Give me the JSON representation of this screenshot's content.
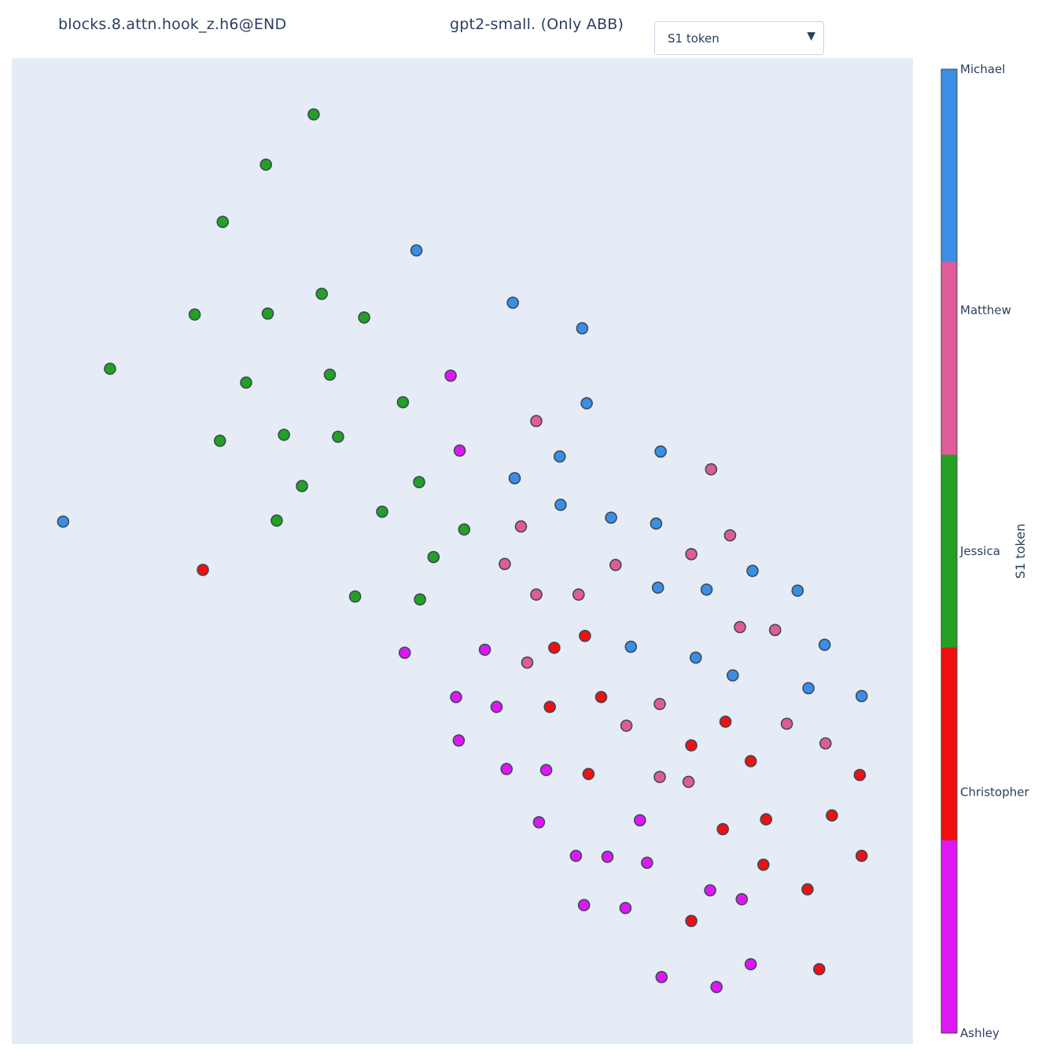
{
  "header": {
    "left_title": "blocks.8.attn.hook_z.h6@END",
    "center_title": "gpt2-small. (Only ABB)"
  },
  "dropdown": {
    "selected": "S1 token",
    "icon": "caret-down-icon"
  },
  "colorbar": {
    "title": "S1 token",
    "categories": [
      {
        "name": "Michael",
        "color": "#3a8ee6"
      },
      {
        "name": "Matthew",
        "color": "#e05c98"
      },
      {
        "name": "Jessica",
        "color": "#22a122"
      },
      {
        "name": "Christopher",
        "color": "#f01010"
      },
      {
        "name": "Ashley",
        "color": "#dd18f5"
      }
    ]
  },
  "chart_data": {
    "type": "scatter",
    "title": "",
    "xlabel": "",
    "ylabel": "",
    "grid": false,
    "xlim": [
      0,
      100
    ],
    "ylim": [
      0,
      100
    ],
    "color_key": "S1 token",
    "points": [
      {
        "x": 33.5,
        "y": 94.3,
        "c": "Jessica"
      },
      {
        "x": 28.2,
        "y": 89.2,
        "c": "Jessica"
      },
      {
        "x": 23.4,
        "y": 83.4,
        "c": "Jessica"
      },
      {
        "x": 34.4,
        "y": 76.1,
        "c": "Jessica"
      },
      {
        "x": 20.3,
        "y": 74.0,
        "c": "Jessica"
      },
      {
        "x": 28.4,
        "y": 74.1,
        "c": "Jessica"
      },
      {
        "x": 39.1,
        "y": 73.7,
        "c": "Jessica"
      },
      {
        "x": 10.9,
        "y": 68.5,
        "c": "Jessica"
      },
      {
        "x": 26.0,
        "y": 67.1,
        "c": "Jessica"
      },
      {
        "x": 35.3,
        "y": 67.9,
        "c": "Jessica"
      },
      {
        "x": 43.4,
        "y": 65.1,
        "c": "Jessica"
      },
      {
        "x": 23.1,
        "y": 61.2,
        "c": "Jessica"
      },
      {
        "x": 30.2,
        "y": 61.8,
        "c": "Jessica"
      },
      {
        "x": 36.2,
        "y": 61.6,
        "c": "Jessica"
      },
      {
        "x": 32.2,
        "y": 56.6,
        "c": "Jessica"
      },
      {
        "x": 45.2,
        "y": 57.0,
        "c": "Jessica"
      },
      {
        "x": 41.1,
        "y": 54.0,
        "c": "Jessica"
      },
      {
        "x": 29.4,
        "y": 53.1,
        "c": "Jessica"
      },
      {
        "x": 50.2,
        "y": 52.2,
        "c": "Jessica"
      },
      {
        "x": 46.8,
        "y": 49.4,
        "c": "Jessica"
      },
      {
        "x": 38.1,
        "y": 45.4,
        "c": "Jessica"
      },
      {
        "x": 45.3,
        "y": 45.1,
        "c": "Jessica"
      },
      {
        "x": 5.7,
        "y": 53.0,
        "c": "Michael"
      },
      {
        "x": 44.9,
        "y": 80.5,
        "c": "Michael"
      },
      {
        "x": 55.6,
        "y": 75.2,
        "c": "Michael"
      },
      {
        "x": 63.3,
        "y": 72.6,
        "c": "Michael"
      },
      {
        "x": 63.8,
        "y": 65.0,
        "c": "Michael"
      },
      {
        "x": 72.0,
        "y": 60.1,
        "c": "Michael"
      },
      {
        "x": 60.8,
        "y": 59.6,
        "c": "Michael"
      },
      {
        "x": 55.8,
        "y": 57.4,
        "c": "Michael"
      },
      {
        "x": 60.9,
        "y": 54.7,
        "c": "Michael"
      },
      {
        "x": 66.5,
        "y": 53.4,
        "c": "Michael"
      },
      {
        "x": 71.5,
        "y": 52.8,
        "c": "Michael"
      },
      {
        "x": 82.2,
        "y": 48.0,
        "c": "Michael"
      },
      {
        "x": 71.7,
        "y": 46.3,
        "c": "Michael"
      },
      {
        "x": 77.1,
        "y": 46.1,
        "c": "Michael"
      },
      {
        "x": 87.2,
        "y": 46.0,
        "c": "Michael"
      },
      {
        "x": 90.2,
        "y": 40.5,
        "c": "Michael"
      },
      {
        "x": 68.7,
        "y": 40.3,
        "c": "Michael"
      },
      {
        "x": 75.9,
        "y": 39.2,
        "c": "Michael"
      },
      {
        "x": 80.0,
        "y": 37.4,
        "c": "Michael"
      },
      {
        "x": 88.4,
        "y": 36.1,
        "c": "Michael"
      },
      {
        "x": 94.3,
        "y": 35.3,
        "c": "Michael"
      },
      {
        "x": 58.2,
        "y": 63.2,
        "c": "Matthew"
      },
      {
        "x": 77.6,
        "y": 58.3,
        "c": "Matthew"
      },
      {
        "x": 56.5,
        "y": 52.5,
        "c": "Matthew"
      },
      {
        "x": 79.7,
        "y": 51.6,
        "c": "Matthew"
      },
      {
        "x": 75.4,
        "y": 49.7,
        "c": "Matthew"
      },
      {
        "x": 54.7,
        "y": 48.7,
        "c": "Matthew"
      },
      {
        "x": 67.0,
        "y": 48.6,
        "c": "Matthew"
      },
      {
        "x": 58.2,
        "y": 45.6,
        "c": "Matthew"
      },
      {
        "x": 62.9,
        "y": 45.6,
        "c": "Matthew"
      },
      {
        "x": 80.8,
        "y": 42.3,
        "c": "Matthew"
      },
      {
        "x": 84.7,
        "y": 42.0,
        "c": "Matthew"
      },
      {
        "x": 57.2,
        "y": 38.7,
        "c": "Matthew"
      },
      {
        "x": 71.9,
        "y": 34.5,
        "c": "Matthew"
      },
      {
        "x": 68.2,
        "y": 32.3,
        "c": "Matthew"
      },
      {
        "x": 86.0,
        "y": 32.5,
        "c": "Matthew"
      },
      {
        "x": 90.3,
        "y": 30.5,
        "c": "Matthew"
      },
      {
        "x": 71.9,
        "y": 27.1,
        "c": "Matthew"
      },
      {
        "x": 75.1,
        "y": 26.6,
        "c": "Matthew"
      },
      {
        "x": 21.2,
        "y": 48.1,
        "c": "Christopher"
      },
      {
        "x": 63.6,
        "y": 41.4,
        "c": "Christopher"
      },
      {
        "x": 60.2,
        "y": 40.2,
        "c": "Christopher"
      },
      {
        "x": 65.4,
        "y": 35.2,
        "c": "Christopher"
      },
      {
        "x": 59.7,
        "y": 34.2,
        "c": "Christopher"
      },
      {
        "x": 79.2,
        "y": 32.7,
        "c": "Christopher"
      },
      {
        "x": 75.4,
        "y": 30.3,
        "c": "Christopher"
      },
      {
        "x": 82.0,
        "y": 28.7,
        "c": "Christopher"
      },
      {
        "x": 64.0,
        "y": 27.4,
        "c": "Christopher"
      },
      {
        "x": 94.1,
        "y": 27.3,
        "c": "Christopher"
      },
      {
        "x": 91.0,
        "y": 23.2,
        "c": "Christopher"
      },
      {
        "x": 83.7,
        "y": 22.8,
        "c": "Christopher"
      },
      {
        "x": 78.9,
        "y": 21.8,
        "c": "Christopher"
      },
      {
        "x": 83.4,
        "y": 18.2,
        "c": "Christopher"
      },
      {
        "x": 94.3,
        "y": 19.1,
        "c": "Christopher"
      },
      {
        "x": 88.3,
        "y": 15.7,
        "c": "Christopher"
      },
      {
        "x": 75.4,
        "y": 12.5,
        "c": "Christopher"
      },
      {
        "x": 89.6,
        "y": 7.6,
        "c": "Christopher"
      },
      {
        "x": 48.7,
        "y": 67.8,
        "c": "Ashley"
      },
      {
        "x": 49.7,
        "y": 60.2,
        "c": "Ashley"
      },
      {
        "x": 43.6,
        "y": 39.7,
        "c": "Ashley"
      },
      {
        "x": 52.5,
        "y": 40.0,
        "c": "Ashley"
      },
      {
        "x": 49.3,
        "y": 35.2,
        "c": "Ashley"
      },
      {
        "x": 53.8,
        "y": 34.2,
        "c": "Ashley"
      },
      {
        "x": 49.6,
        "y": 30.8,
        "c": "Ashley"
      },
      {
        "x": 54.9,
        "y": 27.9,
        "c": "Ashley"
      },
      {
        "x": 59.3,
        "y": 27.8,
        "c": "Ashley"
      },
      {
        "x": 58.5,
        "y": 22.5,
        "c": "Ashley"
      },
      {
        "x": 69.7,
        "y": 22.7,
        "c": "Ashley"
      },
      {
        "x": 62.6,
        "y": 19.1,
        "c": "Ashley"
      },
      {
        "x": 66.1,
        "y": 19.0,
        "c": "Ashley"
      },
      {
        "x": 70.5,
        "y": 18.4,
        "c": "Ashley"
      },
      {
        "x": 77.5,
        "y": 15.6,
        "c": "Ashley"
      },
      {
        "x": 81.0,
        "y": 14.7,
        "c": "Ashley"
      },
      {
        "x": 63.5,
        "y": 14.1,
        "c": "Ashley"
      },
      {
        "x": 68.1,
        "y": 13.8,
        "c": "Ashley"
      },
      {
        "x": 82.0,
        "y": 8.1,
        "c": "Ashley"
      },
      {
        "x": 72.1,
        "y": 6.8,
        "c": "Ashley"
      },
      {
        "x": 78.2,
        "y": 5.8,
        "c": "Ashley"
      }
    ]
  }
}
